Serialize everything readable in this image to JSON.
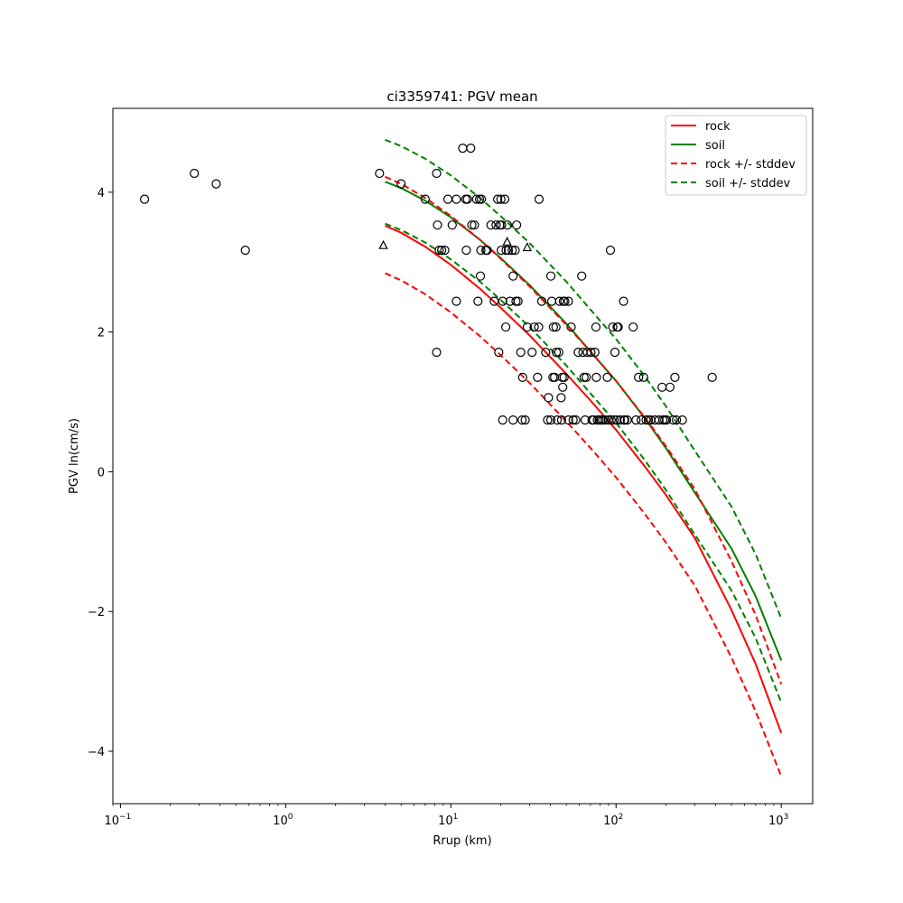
{
  "chart_data": {
    "type": "scatter",
    "title": "ci3359741: PGV mean",
    "xlabel": "Rrup (km)",
    "ylabel": "PGV ln(cm/s)",
    "xscale": "log",
    "xlim": [
      0.09,
      1550
    ],
    "ylim": [
      -4.75,
      5.2
    ],
    "x_ticks": [
      {
        "value": 0.1,
        "label": "10",
        "exp": "−1"
      },
      {
        "value": 1,
        "label": "10",
        "exp": "0"
      },
      {
        "value": 10,
        "label": "10",
        "exp": "1"
      },
      {
        "value": 100,
        "label": "10",
        "exp": "2"
      },
      {
        "value": 1000,
        "label": "10",
        "exp": "3"
      }
    ],
    "y_ticks": [
      {
        "value": -4,
        "label": "−4"
      },
      {
        "value": -2,
        "label": "−2"
      },
      {
        "value": 0,
        "label": "0"
      },
      {
        "value": 2,
        "label": "2"
      },
      {
        "value": 4,
        "label": "4"
      }
    ],
    "grid": false,
    "legend_position": "top-right",
    "legend": [
      {
        "label": "rock",
        "color": "#ff0000",
        "dash": "solid"
      },
      {
        "label": "soil",
        "color": "#008000",
        "dash": "solid"
      },
      {
        "label": "rock +/- stddev",
        "color": "#ff0000",
        "dash": "dashed"
      },
      {
        "label": "soil +/- stddev",
        "color": "#008000",
        "dash": "dashed"
      }
    ],
    "curves": {
      "x": [
        4,
        5,
        7,
        10,
        15,
        20,
        30,
        50,
        70,
        100,
        150,
        200,
        300,
        500,
        700,
        1000
      ],
      "rock": [
        3.52,
        3.42,
        3.22,
        2.96,
        2.62,
        2.35,
        1.95,
        1.4,
        1.02,
        0.6,
        0.07,
        -0.33,
        -0.95,
        -1.98,
        -2.75,
        -3.74
      ],
      "soil": [
        4.15,
        4.06,
        3.88,
        3.64,
        3.32,
        3.06,
        2.67,
        2.12,
        1.72,
        1.3,
        0.76,
        0.34,
        -0.3,
        -1.1,
        -1.78,
        -2.7
      ],
      "rock_upper": [
        4.22,
        4.12,
        3.92,
        3.66,
        3.32,
        3.05,
        2.65,
        2.1,
        1.72,
        1.3,
        0.77,
        0.37,
        -0.25,
        -1.28,
        -2.05,
        -3.04
      ],
      "rock_lower": [
        2.84,
        2.74,
        2.54,
        2.28,
        1.94,
        1.67,
        1.27,
        0.72,
        0.34,
        -0.08,
        -0.61,
        -1.01,
        -1.63,
        -2.66,
        -3.43,
        -4.36
      ],
      "soil_upper": [
        4.75,
        4.66,
        4.48,
        4.24,
        3.92,
        3.66,
        3.27,
        2.72,
        2.32,
        1.9,
        1.36,
        0.94,
        0.3,
        -0.5,
        -1.18,
        -2.1
      ],
      "soil_lower": [
        3.55,
        3.46,
        3.28,
        3.04,
        2.72,
        2.46,
        2.07,
        1.52,
        1.12,
        0.7,
        0.16,
        -0.26,
        -0.9,
        -1.7,
        -2.38,
        -3.3
      ]
    },
    "colors": {
      "rock": "#ff0000",
      "soil": "#008000",
      "markers": "#000000"
    },
    "observations_circle": [
      [
        0.14,
        3.9
      ],
      [
        0.28,
        4.27
      ],
      [
        0.38,
        4.12
      ],
      [
        0.57,
        3.17
      ],
      [
        3.7,
        4.27
      ],
      [
        5.0,
        4.12
      ],
      [
        7.0,
        3.9
      ],
      [
        8.2,
        4.27
      ],
      [
        8.3,
        3.53
      ],
      [
        8.5,
        3.17
      ],
      [
        8.8,
        3.17
      ],
      [
        9.2,
        3.17
      ],
      [
        8.2,
        1.71
      ],
      [
        9.6,
        3.9
      ],
      [
        10.2,
        3.53
      ],
      [
        10.8,
        3.9
      ],
      [
        10.8,
        2.44
      ],
      [
        11.8,
        4.63
      ],
      [
        12.3,
        3.9
      ],
      [
        12.4,
        3.17
      ],
      [
        12.6,
        3.9
      ],
      [
        13.2,
        4.63
      ],
      [
        13.4,
        3.53
      ],
      [
        13.9,
        3.53
      ],
      [
        14.3,
        3.9
      ],
      [
        14.6,
        2.44
      ],
      [
        14.9,
        3.9
      ],
      [
        15.1,
        2.8
      ],
      [
        15.3,
        3.9
      ],
      [
        15.2,
        3.17
      ],
      [
        16.3,
        3.17
      ],
      [
        16.6,
        3.17
      ],
      [
        17.5,
        3.53
      ],
      [
        18.3,
        2.44
      ],
      [
        18.8,
        3.53
      ],
      [
        19.2,
        3.9
      ],
      [
        19.5,
        1.71
      ],
      [
        19.8,
        3.53
      ],
      [
        20.1,
        3.9
      ],
      [
        20.2,
        3.17
      ],
      [
        20.3,
        3.53
      ],
      [
        20.6,
        2.44
      ],
      [
        20.6,
        0.74
      ],
      [
        21.2,
        3.9
      ],
      [
        21.5,
        2.07
      ],
      [
        21.6,
        3.17
      ],
      [
        22.0,
        3.53
      ],
      [
        22.3,
        3.17
      ],
      [
        22.8,
        2.44
      ],
      [
        23.5,
        3.17
      ],
      [
        23.8,
        2.8
      ],
      [
        23.8,
        0.74
      ],
      [
        24.5,
        3.17
      ],
      [
        24.8,
        2.44
      ],
      [
        25.0,
        3.53
      ],
      [
        25.5,
        2.44
      ],
      [
        26.5,
        1.71
      ],
      [
        27.2,
        1.35
      ],
      [
        27.0,
        0.74
      ],
      [
        28.2,
        0.74
      ],
      [
        29.0,
        2.07
      ],
      [
        31.0,
        1.71
      ],
      [
        32.0,
        2.07
      ],
      [
        33.5,
        1.35
      ],
      [
        34.0,
        2.07
      ],
      [
        34.2,
        3.9
      ],
      [
        35.5,
        2.44
      ],
      [
        37.5,
        1.71
      ],
      [
        38.5,
        0.74
      ],
      [
        39.0,
        1.06
      ],
      [
        40.3,
        2.8
      ],
      [
        40.3,
        0.74
      ],
      [
        40.8,
        2.44
      ],
      [
        41.5,
        1.35
      ],
      [
        41.8,
        2.07
      ],
      [
        42.5,
        1.35
      ],
      [
        43.3,
        2.07
      ],
      [
        43.5,
        1.71
      ],
      [
        44.0,
        0.74
      ],
      [
        45.0,
        1.71
      ],
      [
        45.5,
        2.44
      ],
      [
        46.5,
        1.06
      ],
      [
        46.8,
        0.74
      ],
      [
        47.3,
        1.35
      ],
      [
        47.6,
        1.21
      ],
      [
        48.0,
        2.44
      ],
      [
        48.5,
        1.35
      ],
      [
        49.0,
        2.44
      ],
      [
        51.5,
        2.44
      ],
      [
        51.5,
        0.74
      ],
      [
        53.5,
        2.07
      ],
      [
        55.0,
        0.74
      ],
      [
        57.0,
        0.74
      ],
      [
        59.0,
        1.71
      ],
      [
        62.0,
        2.8
      ],
      [
        63.0,
        1.71
      ],
      [
        64.0,
        1.35
      ],
      [
        65.0,
        0.74
      ],
      [
        66.0,
        1.35
      ],
      [
        67.0,
        1.71
      ],
      [
        70.5,
        1.71
      ],
      [
        71.5,
        0.74
      ],
      [
        73.0,
        0.74
      ],
      [
        74.5,
        1.71
      ],
      [
        75.5,
        2.07
      ],
      [
        76.0,
        1.35
      ],
      [
        77.0,
        0.74
      ],
      [
        79.0,
        0.74
      ],
      [
        81.0,
        0.74
      ],
      [
        83.0,
        0.74
      ],
      [
        86.0,
        0.74
      ],
      [
        88.5,
        1.35
      ],
      [
        90.0,
        0.74
      ],
      [
        92.5,
        3.17
      ],
      [
        93.5,
        0.74
      ],
      [
        95.5,
        2.07
      ],
      [
        97.5,
        0.74
      ],
      [
        98.5,
        1.71
      ],
      [
        101.0,
        0.74
      ],
      [
        101.5,
        2.07
      ],
      [
        103.0,
        2.07
      ],
      [
        106.0,
        0.74
      ],
      [
        111.0,
        2.44
      ],
      [
        112.0,
        0.74
      ],
      [
        113.0,
        0.74
      ],
      [
        117.0,
        0.74
      ],
      [
        127.0,
        2.07
      ],
      [
        132.0,
        0.74
      ],
      [
        137.0,
        1.35
      ],
      [
        142.0,
        0.74
      ],
      [
        147.0,
        1.35
      ],
      [
        152.0,
        0.74
      ],
      [
        157.0,
        0.74
      ],
      [
        162.0,
        0.74
      ],
      [
        172.0,
        0.74
      ],
      [
        182.0,
        0.74
      ],
      [
        190.0,
        1.21
      ],
      [
        192.0,
        0.74
      ],
      [
        197.0,
        0.74
      ],
      [
        202.0,
        0.74
      ],
      [
        212.0,
        1.21
      ],
      [
        222.0,
        0.74
      ],
      [
        227.0,
        1.35
      ],
      [
        232.0,
        0.74
      ],
      [
        252.0,
        0.74
      ],
      [
        382.0,
        1.35
      ]
    ],
    "observations_triangle": [
      [
        3.9,
        3.24
      ],
      [
        21.9,
        3.29
      ],
      [
        29.0,
        3.21
      ]
    ]
  }
}
